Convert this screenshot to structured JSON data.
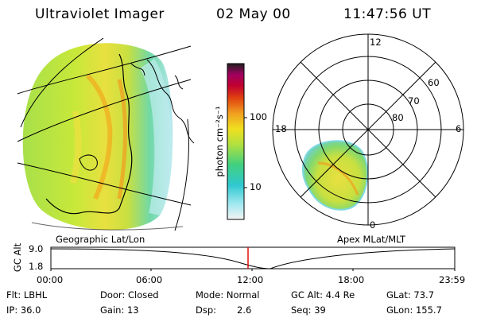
{
  "header": {
    "instrument": "Ultraviolet Imager",
    "date": "02 May 00",
    "time": "11:47:56 UT"
  },
  "colorbar": {
    "unit_label": "photon cm⁻²s⁻¹",
    "tick_100": "100",
    "tick_10": "10",
    "scale": "log"
  },
  "left_panel": {
    "caption": "Geographic Lat/Lon"
  },
  "right_panel": {
    "caption": "Apex MLat/MLT",
    "mlt_labels": {
      "top": "12",
      "left": "18",
      "right": "6",
      "bottom": "0"
    },
    "lat_labels": [
      "60",
      "70",
      "80"
    ]
  },
  "timeline": {
    "ylabel": "GC Alt",
    "y_ticks": [
      "9.0",
      "1.8"
    ],
    "x_ticks": [
      "00:00",
      "06:00",
      "12:00",
      "18:00",
      "23:59"
    ],
    "marker_time_hours": 11.8
  },
  "footer": {
    "filter": "Flt: LBHL",
    "ip": "IP: 36.0",
    "door": "Door: Closed",
    "gain": "Gain: 13",
    "mode": "Mode: Normal",
    "dsp_label": "Dsp:",
    "dsp_value": "2.6",
    "gc_alt": "GC Alt: 4.4 Re",
    "seq": "Seq: 39",
    "glat": "GLat: 73.7",
    "glon": "GLon: 155.7"
  }
}
